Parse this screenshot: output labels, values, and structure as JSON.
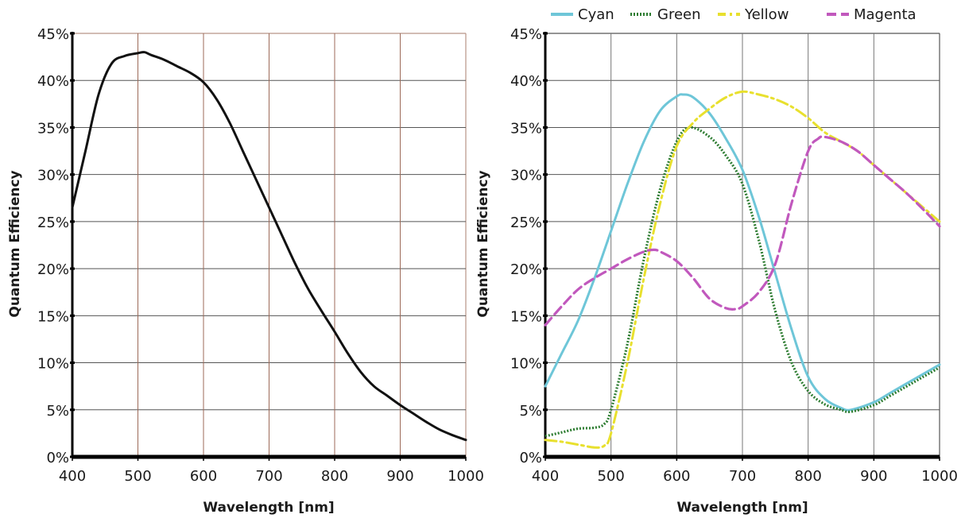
{
  "chart_data": [
    {
      "type": "line",
      "xlabel": "Wavelength [nm]",
      "ylabel": "Quantum Efficiency",
      "xlim": [
        400,
        1000
      ],
      "ylim": [
        0,
        45
      ],
      "x_ticks": [
        "400",
        "500",
        "600",
        "700",
        "800",
        "900",
        "1000"
      ],
      "y_ticks": [
        "0%",
        "5%",
        "10%",
        "15%",
        "20%",
        "25%",
        "30%",
        "35%",
        "40%",
        "45%"
      ],
      "grid": true,
      "series": [
        {
          "color": "#111111",
          "style": "solid",
          "x": [
            400,
            420,
            440,
            460,
            480,
            500,
            510,
            520,
            540,
            560,
            580,
            600,
            620,
            640,
            660,
            680,
            700,
            720,
            740,
            760,
            780,
            800,
            820,
            840,
            860,
            880,
            900,
            920,
            940,
            960,
            980,
            1000
          ],
          "y": [
            26.5,
            32.5,
            38.5,
            41.8,
            42.6,
            42.9,
            43.0,
            42.7,
            42.2,
            41.5,
            40.8,
            39.8,
            38.0,
            35.5,
            32.5,
            29.5,
            26.5,
            23.5,
            20.5,
            17.8,
            15.5,
            13.3,
            11.0,
            9.0,
            7.5,
            6.5,
            5.5,
            4.6,
            3.7,
            2.9,
            2.3,
            1.8
          ]
        }
      ]
    },
    {
      "type": "line",
      "xlabel": "Wavelength [nm]",
      "ylabel": "Quantum Efficiency",
      "xlim": [
        400,
        1000
      ],
      "ylim": [
        0,
        45
      ],
      "x_ticks": [
        "400",
        "500",
        "600",
        "700",
        "800",
        "900",
        "1000"
      ],
      "y_ticks": [
        "0%",
        "5%",
        "10%",
        "15%",
        "20%",
        "25%",
        "30%",
        "35%",
        "40%",
        "45%"
      ],
      "grid": true,
      "legend": "top",
      "series": [
        {
          "name": "Cyan",
          "color": "#6ec6d8",
          "style": "solid",
          "x": [
            400,
            425,
            450,
            475,
            500,
            525,
            550,
            575,
            600,
            610,
            625,
            650,
            675,
            700,
            725,
            750,
            775,
            800,
            825,
            850,
            865,
            900,
            925,
            950,
            975,
            1000
          ],
          "y": [
            7.5,
            11.0,
            14.5,
            19.0,
            24.0,
            29.0,
            33.5,
            36.8,
            38.3,
            38.5,
            38.2,
            36.5,
            33.8,
            30.5,
            25.5,
            19.5,
            13.5,
            8.5,
            6.2,
            5.2,
            5.0,
            5.8,
            6.8,
            7.8,
            8.8,
            9.8
          ]
        },
        {
          "name": "Green",
          "color": "#2e7d32",
          "style": "dotted",
          "x": [
            400,
            425,
            450,
            475,
            490,
            500,
            525,
            550,
            575,
            600,
            620,
            650,
            675,
            700,
            725,
            750,
            775,
            800,
            825,
            850,
            865,
            900,
            925,
            950,
            975,
            1000
          ],
          "y": [
            2.2,
            2.6,
            3.0,
            3.1,
            3.5,
            5.0,
            12.0,
            21.0,
            28.5,
            33.5,
            35.0,
            34.0,
            32.0,
            29.0,
            23.0,
            15.5,
            10.0,
            7.0,
            5.6,
            5.0,
            4.8,
            5.5,
            6.5,
            7.5,
            8.5,
            9.5
          ]
        },
        {
          "name": "Yellow",
          "color": "#e8e02e",
          "style": "dashdot",
          "x": [
            400,
            425,
            450,
            475,
            490,
            500,
            525,
            550,
            575,
            600,
            625,
            650,
            675,
            700,
            725,
            750,
            775,
            800,
            825,
            850,
            875,
            900,
            925,
            950,
            975,
            1000
          ],
          "y": [
            1.8,
            1.6,
            1.3,
            1.0,
            1.2,
            2.5,
            10.0,
            19.0,
            27.0,
            33.0,
            35.5,
            37.0,
            38.2,
            38.8,
            38.5,
            38.0,
            37.2,
            36.0,
            34.5,
            33.5,
            32.5,
            31.0,
            29.5,
            28.0,
            26.5,
            25.0
          ]
        },
        {
          "name": "Magenta",
          "color": "#c158bd",
          "style": "dashed",
          "x": [
            400,
            425,
            450,
            475,
            500,
            525,
            550,
            565,
            575,
            600,
            625,
            650,
            675,
            690,
            700,
            725,
            750,
            775,
            800,
            815,
            825,
            850,
            875,
            900,
            925,
            950,
            975,
            1000
          ],
          "y": [
            14.0,
            16.0,
            17.8,
            19.0,
            20.0,
            21.0,
            21.8,
            22.0,
            21.8,
            20.8,
            19.0,
            16.8,
            15.8,
            15.7,
            16.0,
            17.5,
            20.5,
            27.0,
            32.5,
            33.8,
            34.0,
            33.5,
            32.5,
            31.0,
            29.5,
            28.0,
            26.3,
            24.5
          ]
        }
      ]
    }
  ]
}
